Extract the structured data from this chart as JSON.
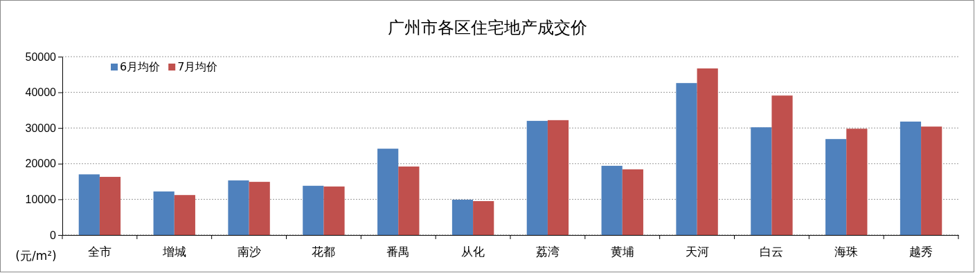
{
  "chart_data": {
    "type": "bar",
    "title": "广州市各区住宅地产成交价",
    "ylabel": "(元/m²)",
    "categories": [
      "全市",
      "增城",
      "南沙",
      "花都",
      "番禺",
      "从化",
      "荔湾",
      "黄埔",
      "天河",
      "白云",
      "海珠",
      "越秀"
    ],
    "series": [
      {
        "name": "6月均价",
        "color": "#4f81bd",
        "values": [
          17000,
          12200,
          15300,
          13800,
          24200,
          9900,
          32000,
          19400,
          42600,
          30200,
          26900,
          31800
        ]
      },
      {
        "name": "7月均价",
        "color": "#c0504d",
        "values": [
          16300,
          11200,
          14900,
          13600,
          19200,
          9500,
          32200,
          18400,
          46700,
          39100,
          29800,
          30400
        ]
      }
    ],
    "ylim": [
      0,
      50000
    ],
    "yticks": [
      0,
      10000,
      20000,
      30000,
      40000,
      50000
    ],
    "grid": "y",
    "legend": "top left"
  }
}
